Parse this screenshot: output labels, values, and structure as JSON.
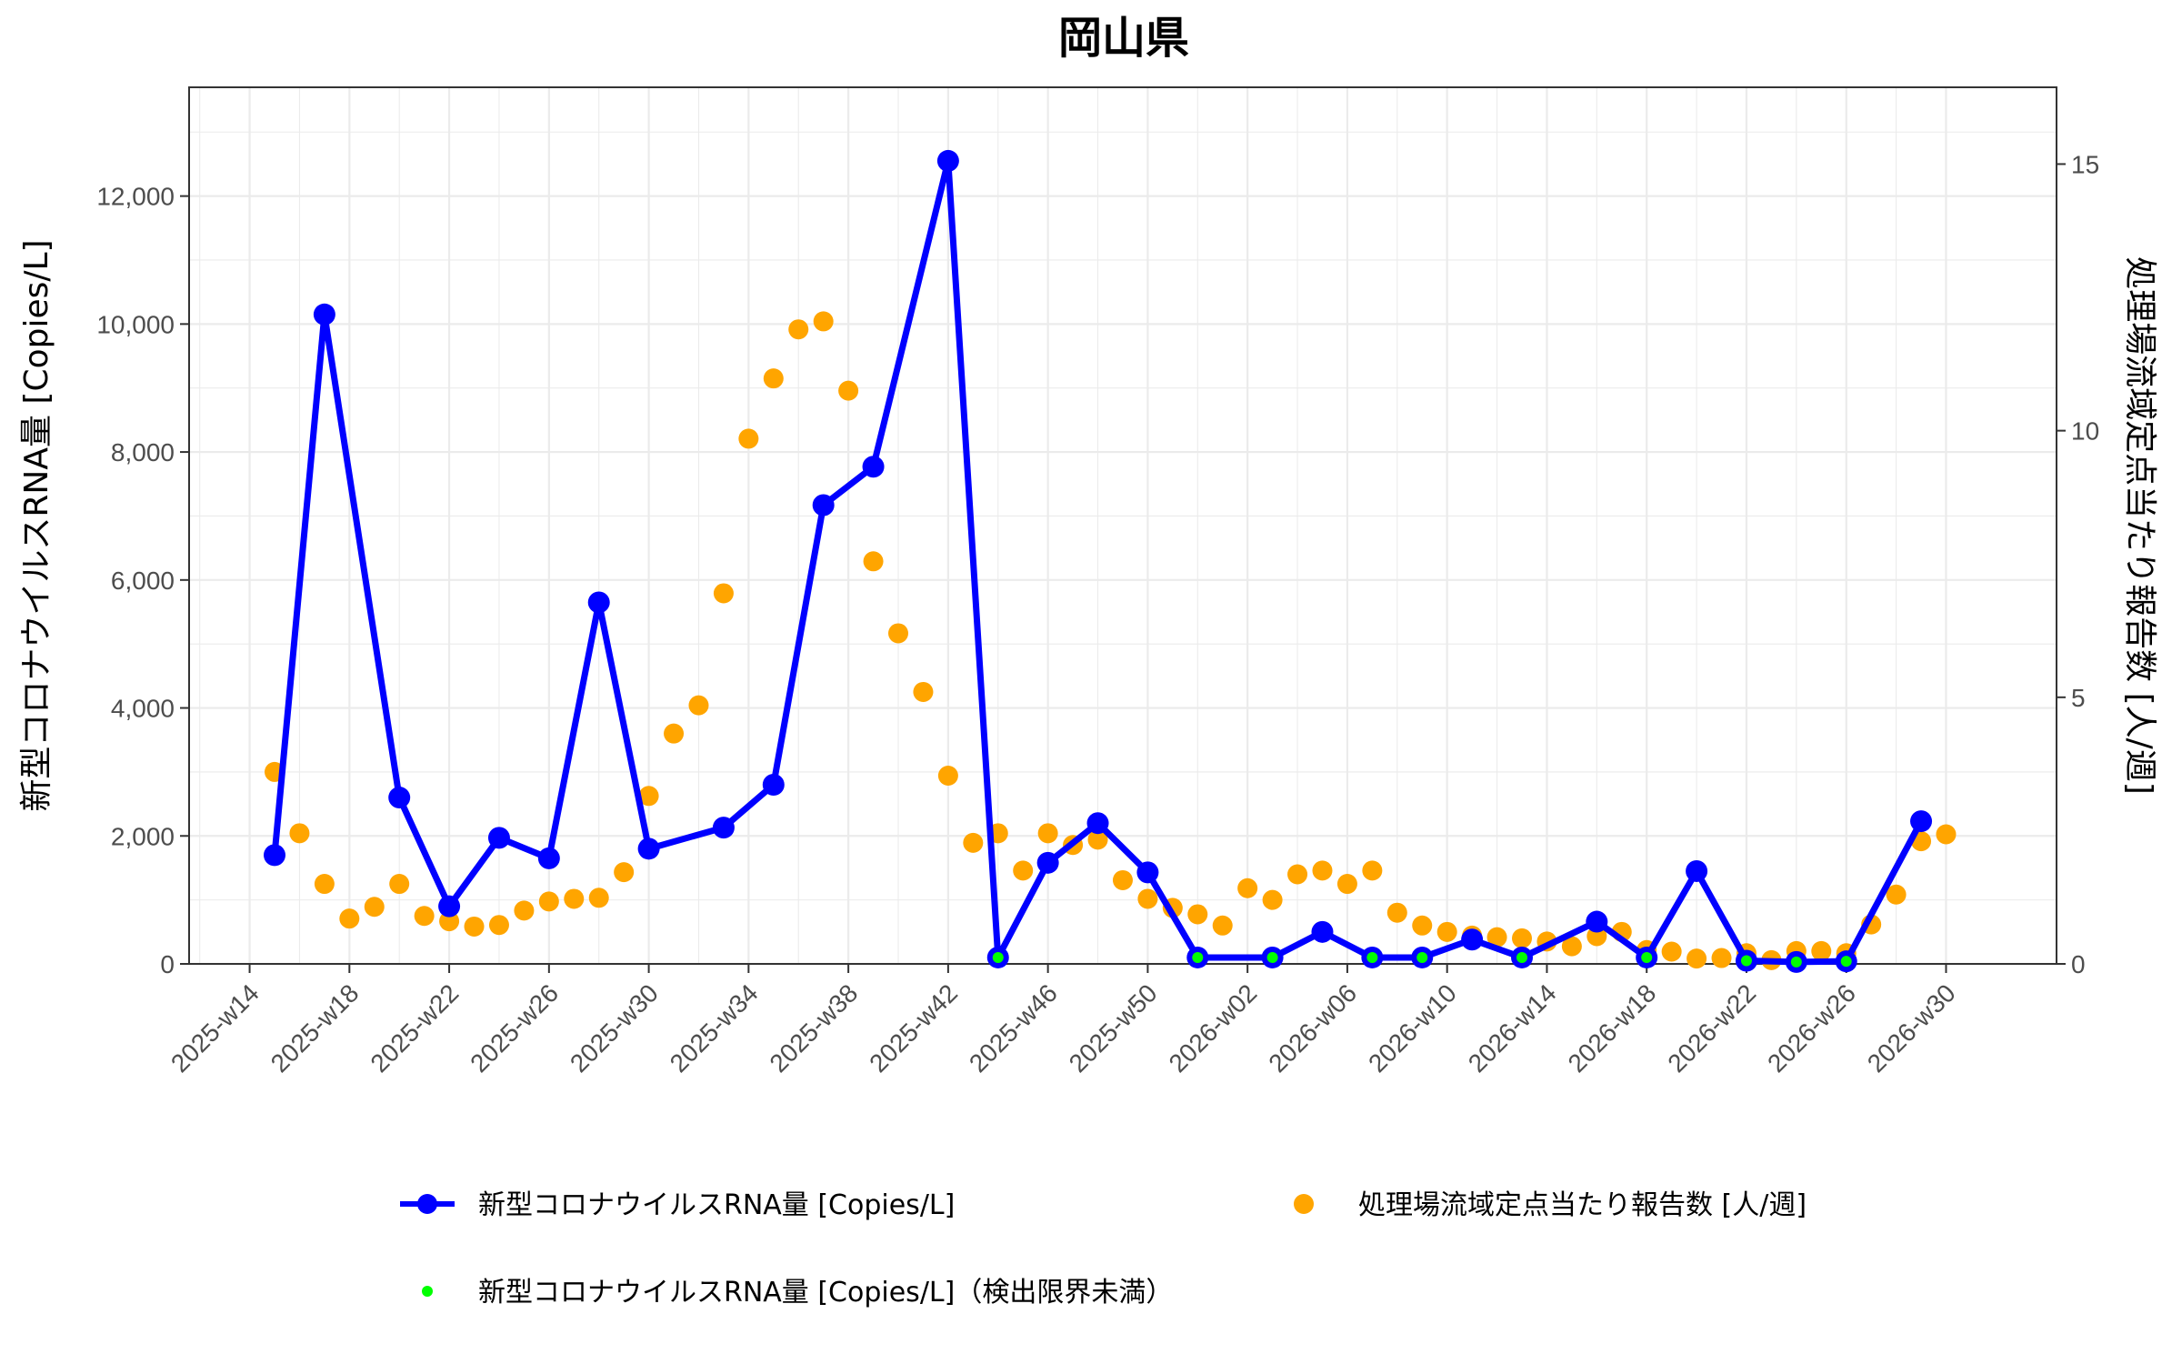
{
  "chart_data": {
    "type": "line",
    "title": "岡山県",
    "ylabel_left": "新型コロナウイルスRNA量 [Copies/L]",
    "ylabel_right": "処理場流域定点当たり報告数 [人/週]",
    "ylim_left": [
      0,
      13700
    ],
    "ylim_right": [
      0,
      16.44
    ],
    "y_ticks_left": [
      0,
      2000,
      4000,
      6000,
      8000,
      10000,
      12000
    ],
    "y_tick_labels_left": [
      "0",
      "2,000",
      "4,000",
      "6,000",
      "8,000",
      "10,000",
      "12,000"
    ],
    "y_ticks_right": [
      0,
      5,
      10,
      15
    ],
    "y_tick_labels_right": [
      "0",
      "5",
      "10",
      "15"
    ],
    "grid": true,
    "legend_position": "bottom",
    "colors": {
      "rna": "#0000ff",
      "reports": "#ffa500",
      "below_limit": "#00ff00"
    },
    "x_ticks": [
      "2025-w14",
      "2025-w18",
      "2025-w22",
      "2025-w26",
      "2025-w30",
      "2025-w34",
      "2025-w38",
      "2025-w42",
      "2025-w46",
      "2025-w50",
      "2026-w02",
      "2026-w06",
      "2026-w10",
      "2026-w14",
      "2026-w18",
      "2026-w22",
      "2026-w26",
      "2026-w30"
    ],
    "series": [
      {
        "name": "新型コロナウイルスRNA量 [Copies/L]",
        "axis": "left",
        "style": "line+marker",
        "points": [
          [
            "2025-w15",
            1700
          ],
          [
            "2025-w17",
            10150
          ],
          [
            "2025-w20",
            2600
          ],
          [
            "2025-w22",
            900
          ],
          [
            "2025-w24",
            1970
          ],
          [
            "2025-w26",
            1650
          ],
          [
            "2025-w28",
            5650
          ],
          [
            "2025-w30",
            1800
          ],
          [
            "2025-w33",
            2130
          ],
          [
            "2025-w35",
            2800
          ],
          [
            "2025-w37",
            7170
          ],
          [
            "2025-w39",
            7770
          ],
          [
            "2025-w42",
            12550
          ],
          [
            "2025-w44",
            100
          ],
          [
            "2025-w46",
            1580
          ],
          [
            "2025-w48",
            2200
          ],
          [
            "2025-w50",
            1430
          ],
          [
            "2025-w52",
            100
          ],
          [
            "2026-w03",
            100
          ],
          [
            "2026-w05",
            500
          ],
          [
            "2026-w07",
            100
          ],
          [
            "2026-w09",
            100
          ],
          [
            "2026-w11",
            380
          ],
          [
            "2026-w13",
            100
          ],
          [
            "2026-w16",
            660
          ],
          [
            "2026-w18",
            100
          ],
          [
            "2026-w20",
            1450
          ],
          [
            "2026-w22",
            50
          ],
          [
            "2026-w24",
            30
          ],
          [
            "2026-w26",
            40
          ],
          [
            "2026-w29",
            2230
          ]
        ]
      },
      {
        "name": "処理場流域定点当たり報告数 [人/週]",
        "axis": "right",
        "style": "marker",
        "points": [
          [
            "2025-w15",
            3.6
          ],
          [
            "2025-w16",
            2.45
          ],
          [
            "2025-w17",
            1.5
          ],
          [
            "2025-w18",
            0.85
          ],
          [
            "2025-w19",
            1.07
          ],
          [
            "2025-w20",
            1.5
          ],
          [
            "2025-w21",
            0.9
          ],
          [
            "2025-w22",
            0.8
          ],
          [
            "2025-w23",
            0.7
          ],
          [
            "2025-w24",
            0.73
          ],
          [
            "2025-w25",
            1.0
          ],
          [
            "2025-w26",
            1.17
          ],
          [
            "2025-w27",
            1.22
          ],
          [
            "2025-w28",
            1.24
          ],
          [
            "2025-w29",
            1.72
          ],
          [
            "2025-w30",
            3.15
          ],
          [
            "2025-w31",
            4.32
          ],
          [
            "2025-w32",
            4.85
          ],
          [
            "2025-w33",
            6.95
          ],
          [
            "2025-w34",
            9.85
          ],
          [
            "2025-w35",
            10.98
          ],
          [
            "2025-w36",
            11.9
          ],
          [
            "2025-w37",
            12.05
          ],
          [
            "2025-w38",
            10.75
          ],
          [
            "2025-w39",
            7.55
          ],
          [
            "2025-w40",
            6.2
          ],
          [
            "2025-w41",
            5.1
          ],
          [
            "2025-w42",
            3.53
          ],
          [
            "2025-w43",
            2.27
          ],
          [
            "2025-w44",
            2.45
          ],
          [
            "2025-w45",
            1.75
          ],
          [
            "2025-w46",
            2.45
          ],
          [
            "2025-w47",
            2.23
          ],
          [
            "2025-w48",
            2.33
          ],
          [
            "2025-w49",
            1.57
          ],
          [
            "2025-w50",
            1.22
          ],
          [
            "2025-w51",
            1.05
          ],
          [
            "2025-w52",
            0.93
          ],
          [
            "2026-w01",
            0.72
          ],
          [
            "2026-w02",
            1.42
          ],
          [
            "2026-w03",
            1.2
          ],
          [
            "2026-w04",
            1.68
          ],
          [
            "2026-w05",
            1.75
          ],
          [
            "2026-w06",
            1.5
          ],
          [
            "2026-w07",
            1.75
          ],
          [
            "2026-w08",
            0.96
          ],
          [
            "2026-w09",
            0.72
          ],
          [
            "2026-w10",
            0.6
          ],
          [
            "2026-w11",
            0.53
          ],
          [
            "2026-w12",
            0.5
          ],
          [
            "2026-w13",
            0.48
          ],
          [
            "2026-w14",
            0.42
          ],
          [
            "2026-w15",
            0.33
          ],
          [
            "2026-w16",
            0.52
          ],
          [
            "2026-w17",
            0.6
          ],
          [
            "2026-w18",
            0.26
          ],
          [
            "2026-w19",
            0.23
          ],
          [
            "2026-w20",
            0.1
          ],
          [
            "2026-w21",
            0.11
          ],
          [
            "2026-w22",
            0.2
          ],
          [
            "2026-w23",
            0.07
          ],
          [
            "2026-w24",
            0.24
          ],
          [
            "2026-w25",
            0.24
          ],
          [
            "2026-w26",
            0.2
          ],
          [
            "2026-w27",
            0.74
          ],
          [
            "2026-w28",
            1.3
          ],
          [
            "2026-w29",
            2.3
          ],
          [
            "2026-w30",
            2.43
          ]
        ]
      },
      {
        "name": "新型コロナウイルスRNA量 [Copies/L]（検出限界未満）",
        "axis": "left",
        "style": "small-marker",
        "points": [
          [
            "2025-w44",
            100
          ],
          [
            "2025-w52",
            100
          ],
          [
            "2026-w03",
            100
          ],
          [
            "2026-w07",
            100
          ],
          [
            "2026-w09",
            100
          ],
          [
            "2026-w13",
            100
          ],
          [
            "2026-w18",
            100
          ],
          [
            "2026-w22",
            50
          ],
          [
            "2026-w24",
            30
          ],
          [
            "2026-w26",
            40
          ]
        ]
      }
    ]
  }
}
